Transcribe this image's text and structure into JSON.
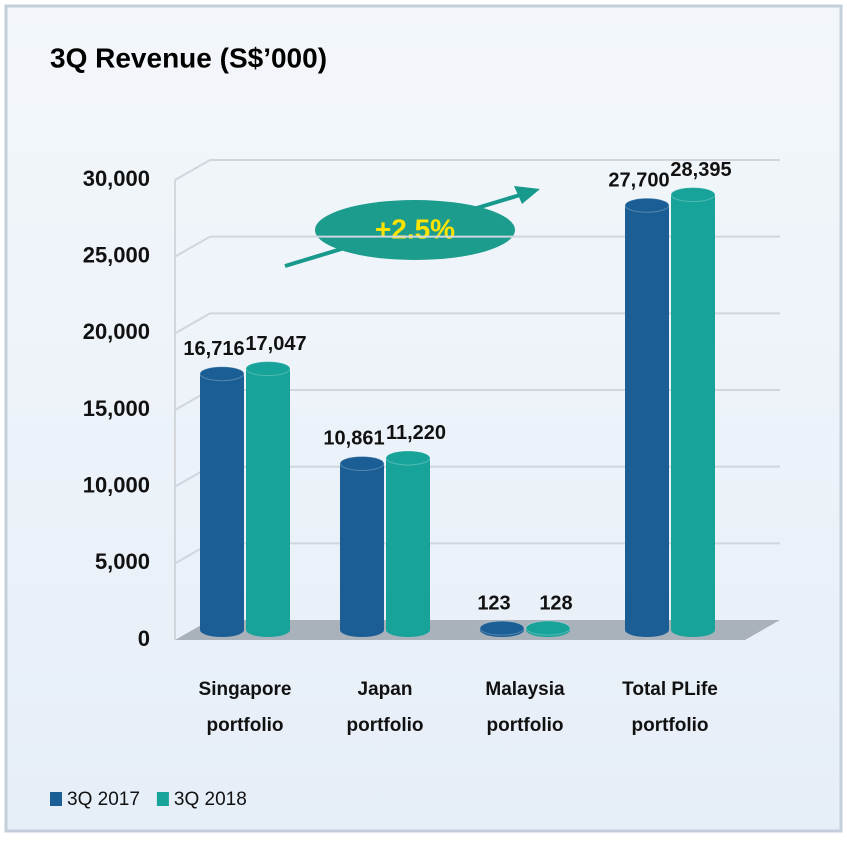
{
  "chart_data": {
    "type": "bar",
    "title": "3Q Revenue (S$’000)",
    "categories": [
      "Singapore portfolio",
      "Japan portfolio",
      "Malaysia portfolio",
      "Total PLife portfolio"
    ],
    "series": [
      {
        "name": "3Q 2017",
        "color": "#1b5e95",
        "values": [
          16716,
          10861,
          123,
          27700
        ],
        "value_labels": [
          "16,716",
          "10,861",
          "123",
          "27,700"
        ]
      },
      {
        "name": "3Q 2018",
        "color": "#17a39a",
        "values": [
          17047,
          11220,
          128,
          28395
        ],
        "value_labels": [
          "17,047",
          "11,220",
          "128",
          "28,395"
        ]
      }
    ],
    "ylim": [
      0,
      30000
    ],
    "yticks": [
      0,
      {
        "value": 5000,
        "label": "5,000"
      },
      {
        "value": 10000,
        "label": "10,000"
      },
      {
        "value": 15000,
        "label": "15,000"
      },
      {
        "value": 20000,
        "label": "20,000"
      },
      {
        "value": 25000,
        "label": "25,000"
      },
      {
        "value": 30000,
        "label": "30,000"
      }
    ],
    "grid": true,
    "annotation": "+2.5%"
  }
}
